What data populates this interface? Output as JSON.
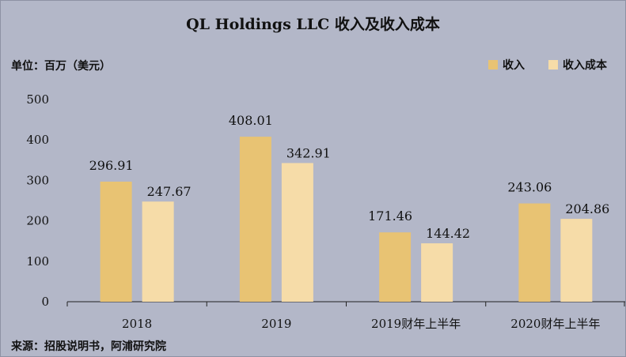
{
  "chart_data": {
    "type": "bar",
    "title": "QL Holdings LLC 收入及收入成本",
    "unit_label": "单位：百万（美元）",
    "source": "来源：招股说明书，阿浦研究院",
    "categories": [
      "2018",
      "2019",
      "2019财年上半年",
      "2020财年上半年"
    ],
    "series": [
      {
        "name": "收入",
        "color": "#e8c373",
        "values": [
          296.91,
          408.01,
          171.46,
          243.06
        ]
      },
      {
        "name": "收入成本",
        "color": "#f6dca8",
        "values": [
          247.67,
          342.91,
          144.42,
          204.86
        ]
      }
    ],
    "ylim": [
      0,
      500
    ],
    "yticks": [
      0,
      100,
      200,
      300,
      400,
      500
    ],
    "grid": false,
    "legend_position": "top-right"
  }
}
